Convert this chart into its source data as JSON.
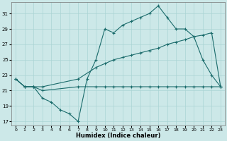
{
  "xlabel": "Humidex (Indice chaleur)",
  "background_color": "#cce8e8",
  "grid_color": "#aad4d4",
  "line_color": "#1a6b6b",
  "xlim": [
    -0.5,
    23.5
  ],
  "ylim": [
    16.5,
    32.5
  ],
  "yticks": [
    17,
    19,
    21,
    23,
    25,
    27,
    29,
    31
  ],
  "xticks": [
    0,
    1,
    2,
    3,
    4,
    5,
    6,
    7,
    8,
    9,
    10,
    11,
    12,
    13,
    14,
    15,
    16,
    17,
    18,
    19,
    20,
    21,
    22,
    23
  ],
  "line1_x": [
    0,
    1,
    2,
    3,
    4,
    5,
    6,
    7,
    8,
    9,
    10,
    11,
    12,
    13,
    14,
    15,
    16,
    17,
    18,
    19,
    20,
    21,
    22,
    23
  ],
  "line1_y": [
    22.5,
    21.5,
    21.5,
    20.0,
    19.5,
    18.5,
    18.0,
    17.0,
    22.5,
    25.0,
    29.0,
    28.5,
    29.5,
    30.0,
    30.5,
    31.0,
    32.0,
    30.5,
    29.0,
    29.0,
    28.0,
    25.0,
    23.0,
    21.5
  ],
  "line2_x": [
    0,
    1,
    2,
    3,
    7,
    9,
    10,
    11,
    12,
    13,
    14,
    15,
    16,
    17,
    18,
    19,
    20,
    21,
    22,
    23
  ],
  "line2_y": [
    22.5,
    21.5,
    21.5,
    21.5,
    22.5,
    24.0,
    24.5,
    25.0,
    25.3,
    25.6,
    25.9,
    26.2,
    26.5,
    27.0,
    27.3,
    27.6,
    28.0,
    28.2,
    28.5,
    21.5
  ],
  "line3_x": [
    0,
    1,
    2,
    3,
    7,
    9,
    10,
    11,
    12,
    13,
    14,
    15,
    16,
    17,
    18,
    19,
    20,
    21,
    22,
    23
  ],
  "line3_y": [
    22.5,
    21.5,
    21.5,
    21.0,
    21.5,
    21.5,
    21.5,
    21.5,
    21.5,
    21.5,
    21.5,
    21.5,
    21.5,
    21.5,
    21.5,
    21.5,
    21.5,
    21.5,
    21.5,
    21.5
  ]
}
